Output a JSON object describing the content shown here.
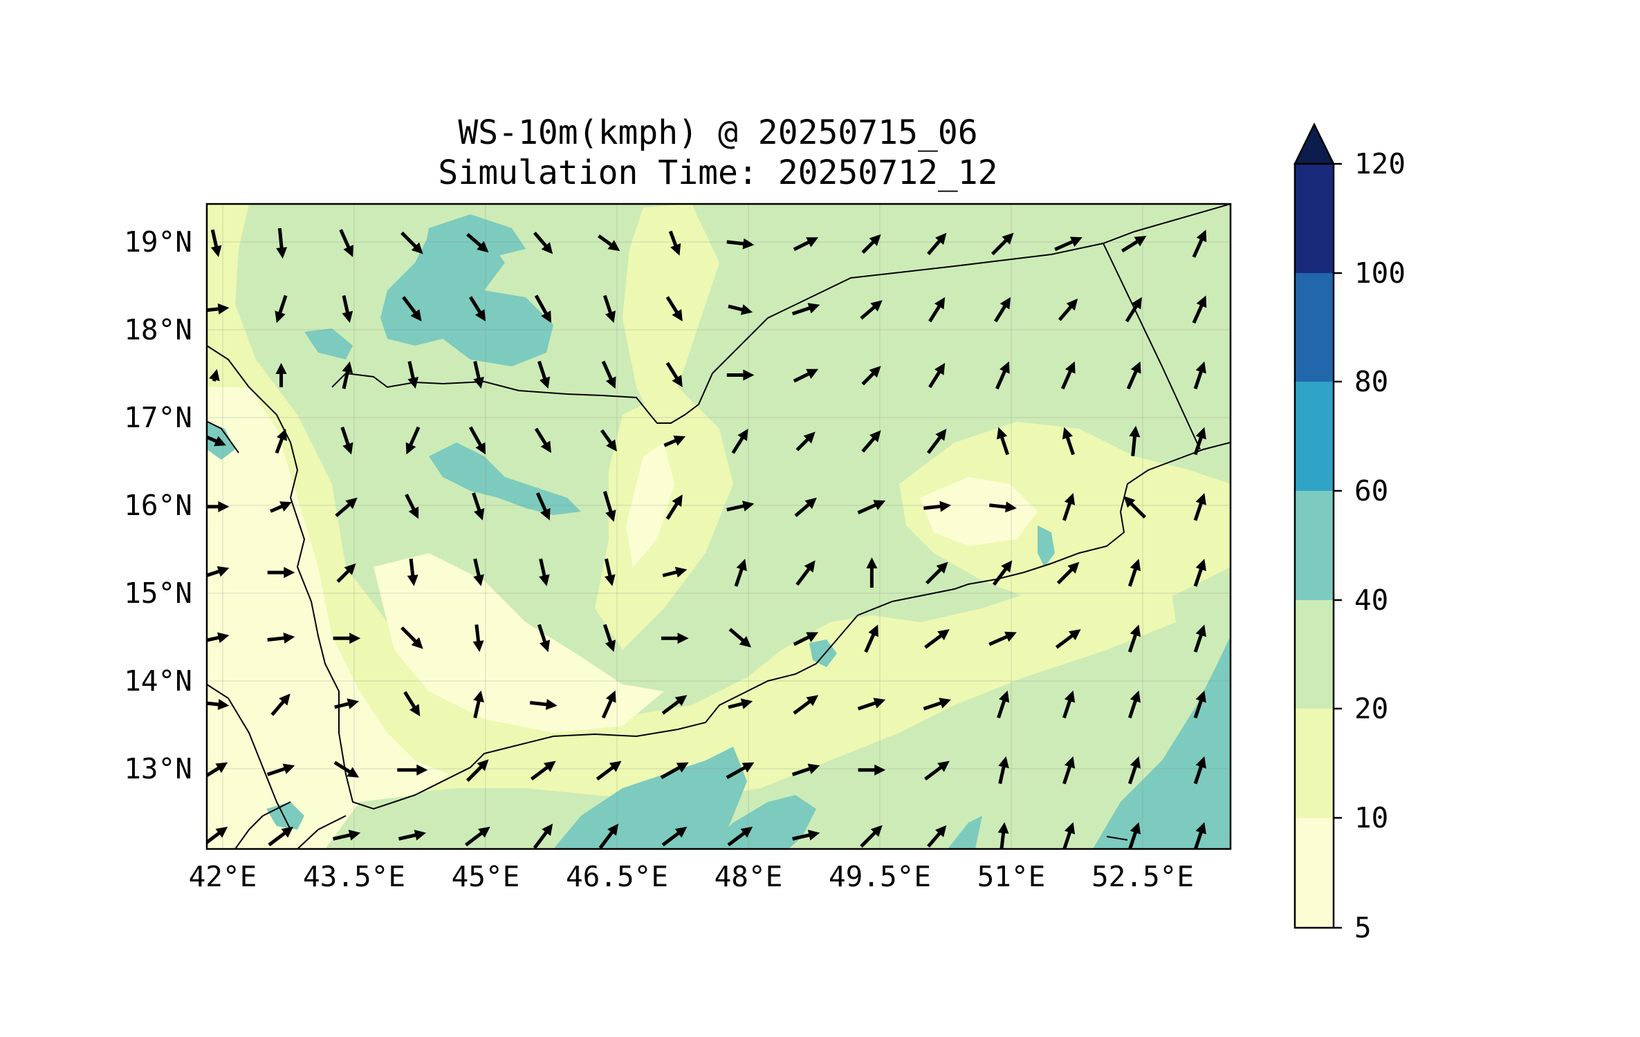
{
  "map": {
    "title_line1": "WS-10m(kmph) @ 20250715_06",
    "title_line2": "Simulation Time: 20250712_12",
    "variable": "WS-10m",
    "units": "kmph",
    "valid_time": "20250715_06",
    "simulation_time": "20250712_12",
    "extent": {
      "lon_min": 41.9,
      "lon_max": 53.6,
      "lat_min": 12.1,
      "lat_max": 19.45
    },
    "grid_lines": true,
    "lon_ticks": [
      {
        "value": 42.0,
        "label": "42°E"
      },
      {
        "value": 43.5,
        "label": "43.5°E"
      },
      {
        "value": 45.0,
        "label": "45°E"
      },
      {
        "value": 46.5,
        "label": "46.5°E"
      },
      {
        "value": 48.0,
        "label": "48°E"
      },
      {
        "value": 49.5,
        "label": "49.5°E"
      },
      {
        "value": 51.0,
        "label": "51°E"
      },
      {
        "value": 52.5,
        "label": "52.5°E"
      }
    ],
    "lat_ticks": [
      {
        "value": 19,
        "label": "19°N"
      },
      {
        "value": 18,
        "label": "18°N"
      },
      {
        "value": 17,
        "label": "17°N"
      },
      {
        "value": 16,
        "label": "16°N"
      },
      {
        "value": 15,
        "label": "15°N"
      },
      {
        "value": 14,
        "label": "14°N"
      },
      {
        "value": 13,
        "label": "13°N"
      }
    ],
    "background_color": "#cdebb6",
    "wind_arrow_color": "#000000",
    "boundary_color": "#000000"
  },
  "colorbar": {
    "levels": [
      5,
      10,
      20,
      40,
      60,
      80,
      100,
      120
    ],
    "labels": [
      "5",
      "10",
      "20",
      "40",
      "60",
      "80",
      "100",
      "120"
    ],
    "colors": [
      "#fbfed3",
      "#edf8b2",
      "#cdebb6",
      "#7ccbbe",
      "#2fa4c6",
      "#2267ab",
      "#1a2a7a"
    ],
    "extend_color": "#0c1d4d",
    "extend": "max"
  },
  "wind_arrow_field": [
    {
      "lat": 19.0,
      "dirs": [
        [
          0.2,
          -0.9
        ],
        [
          0.1,
          -1
        ],
        [
          0.4,
          -0.9
        ],
        [
          0.7,
          -0.7
        ],
        [
          0.7,
          -0.6
        ],
        [
          0.6,
          -0.7
        ],
        [
          0.7,
          -0.5
        ],
        [
          0.3,
          -0.8
        ],
        [
          0.9,
          -0.1
        ],
        [
          0.8,
          0.4
        ],
        [
          0.6,
          0.6
        ],
        [
          0.6,
          0.7
        ],
        [
          0.7,
          0.7
        ],
        [
          0.9,
          0.4
        ],
        [
          0.8,
          0.5
        ],
        [
          0.4,
          0.9
        ]
      ]
    },
    {
      "lat": 18.25,
      "dirs": [
        [
          0.9,
          0.1
        ],
        [
          -0.3,
          -0.9
        ],
        [
          0.2,
          -0.9
        ],
        [
          0.6,
          -0.8
        ],
        [
          0.5,
          -0.8
        ],
        [
          0.5,
          -0.9
        ],
        [
          0.3,
          -0.9
        ],
        [
          0.5,
          -0.8
        ],
        [
          0.8,
          -0.2
        ],
        [
          0.9,
          0.3
        ],
        [
          0.7,
          0.6
        ],
        [
          0.5,
          0.8
        ],
        [
          0.5,
          0.8
        ],
        [
          0.6,
          0.7
        ],
        [
          0.5,
          0.8
        ],
        [
          0.4,
          0.9
        ]
      ]
    },
    {
      "lat": 17.5,
      "dirs": [
        [
          0.1,
          0.4
        ],
        [
          0,
          0.8
        ],
        [
          0.2,
          0.9
        ],
        [
          0.2,
          -0.9
        ],
        [
          0.2,
          -0.9
        ],
        [
          0.3,
          -0.9
        ],
        [
          0.4,
          -0.9
        ],
        [
          0.5,
          -0.8
        ],
        [
          0.9,
          0
        ],
        [
          0.8,
          0.4
        ],
        [
          0.6,
          0.6
        ],
        [
          0.5,
          0.8
        ],
        [
          0.4,
          0.9
        ],
        [
          0.4,
          0.9
        ],
        [
          0.4,
          0.9
        ],
        [
          0.3,
          0.9
        ]
      ]
    },
    {
      "lat": 16.75,
      "dirs": [
        [
          0.7,
          -0.3
        ],
        [
          0.3,
          0.8
        ],
        [
          0.3,
          -0.9
        ],
        [
          -0.4,
          -0.9
        ],
        [
          0.5,
          -0.9
        ],
        [
          0.5,
          -0.8
        ],
        [
          0.5,
          -0.7
        ],
        [
          0.7,
          0.3
        ],
        [
          0.5,
          0.8
        ],
        [
          0.6,
          0.6
        ],
        [
          0.6,
          0.7
        ],
        [
          0.6,
          0.8
        ],
        [
          -0.3,
          0.9
        ],
        [
          -0.3,
          0.9
        ],
        [
          0.1,
          1
        ],
        [
          0.3,
          0.9
        ]
      ]
    },
    {
      "lat": 16.0,
      "dirs": [
        [
          0.9,
          0
        ],
        [
          0.7,
          0.3
        ],
        [
          0.7,
          0.6
        ],
        [
          0.4,
          -0.8
        ],
        [
          0.3,
          -0.9
        ],
        [
          0.4,
          -0.9
        ],
        [
          0.3,
          -1
        ],
        [
          0.5,
          0.8
        ],
        [
          0.9,
          0.2
        ],
        [
          0.7,
          0.6
        ],
        [
          0.9,
          0.4
        ],
        [
          0.9,
          0.1
        ],
        [
          0.9,
          -0.1
        ],
        [
          0.3,
          0.9
        ],
        [
          -0.7,
          0.7
        ],
        [
          0.3,
          0.9
        ]
      ]
    },
    {
      "lat": 15.25,
      "dirs": [
        [
          0.9,
          0.3
        ],
        [
          0.9,
          0
        ],
        [
          0.6,
          0.6
        ],
        [
          0.1,
          -0.9
        ],
        [
          0.2,
          -0.9
        ],
        [
          0.2,
          -0.9
        ],
        [
          0.2,
          -0.9
        ],
        [
          0.8,
          0.2
        ],
        [
          0.3,
          0.9
        ],
        [
          0.6,
          0.8
        ],
        [
          0,
          1
        ],
        [
          0.7,
          0.7
        ],
        [
          0.6,
          0.8
        ],
        [
          0.7,
          0.7
        ],
        [
          0.3,
          0.9
        ],
        [
          0.3,
          0.9
        ]
      ]
    },
    {
      "lat": 14.5,
      "dirs": [
        [
          0.9,
          0.2
        ],
        [
          0.9,
          0.1
        ],
        [
          0.9,
          0
        ],
        [
          0.7,
          -0.7
        ],
        [
          0.1,
          -0.9
        ],
        [
          0.3,
          -0.9
        ],
        [
          0.3,
          -0.9
        ],
        [
          0.9,
          0
        ],
        [
          0.7,
          -0.6
        ],
        [
          0.8,
          0.4
        ],
        [
          0.4,
          0.9
        ],
        [
          0.8,
          0.6
        ],
        [
          0.9,
          0.4
        ],
        [
          0.8,
          0.6
        ],
        [
          0.3,
          0.9
        ],
        [
          0.3,
          0.9
        ]
      ]
    },
    {
      "lat": 13.75,
      "dirs": [
        [
          0.9,
          -0.1
        ],
        [
          0.6,
          0.7
        ],
        [
          0.8,
          0.2
        ],
        [
          0.5,
          -0.8
        ],
        [
          0.2,
          0.9
        ],
        [
          0.9,
          -0.1
        ],
        [
          0.4,
          0.9
        ],
        [
          0.8,
          0.6
        ],
        [
          0.8,
          0.2
        ],
        [
          0.8,
          0.6
        ],
        [
          0.9,
          0.3
        ],
        [
          0.9,
          0.3
        ],
        [
          0.3,
          0.9
        ],
        [
          0.3,
          0.9
        ],
        [
          0.3,
          0.9
        ],
        [
          0.3,
          0.9
        ]
      ]
    },
    {
      "lat": 13.0,
      "dirs": [
        [
          0.8,
          0.5
        ],
        [
          0.9,
          0.3
        ],
        [
          0.8,
          -0.5
        ],
        [
          1,
          0
        ],
        [
          0.7,
          0.7
        ],
        [
          0.8,
          0.6
        ],
        [
          0.8,
          0.6
        ],
        [
          0.9,
          0.5
        ],
        [
          0.9,
          0.5
        ],
        [
          0.9,
          0.3
        ],
        [
          0.9,
          0
        ],
        [
          0.8,
          0.6
        ],
        [
          0.2,
          0.9
        ],
        [
          0.3,
          0.9
        ],
        [
          0.3,
          0.9
        ],
        [
          0.3,
          0.9
        ]
      ]
    },
    {
      "lat": 12.25,
      "dirs": [
        [
          0.8,
          0.6
        ],
        [
          0.8,
          0.6
        ],
        [
          0.9,
          0.2
        ],
        [
          0.9,
          0.2
        ],
        [
          0.8,
          0.6
        ],
        [
          0.6,
          0.8
        ],
        [
          0.6,
          0.8
        ],
        [
          0.8,
          0.6
        ],
        [
          0.8,
          0.6
        ],
        [
          0.9,
          0.2
        ],
        [
          0.7,
          0.7
        ],
        [
          0.6,
          0.7
        ],
        [
          0.1,
          0.9
        ],
        [
          0.3,
          0.9
        ],
        [
          0.3,
          0.9
        ],
        [
          0.3,
          0.9
        ]
      ]
    }
  ]
}
